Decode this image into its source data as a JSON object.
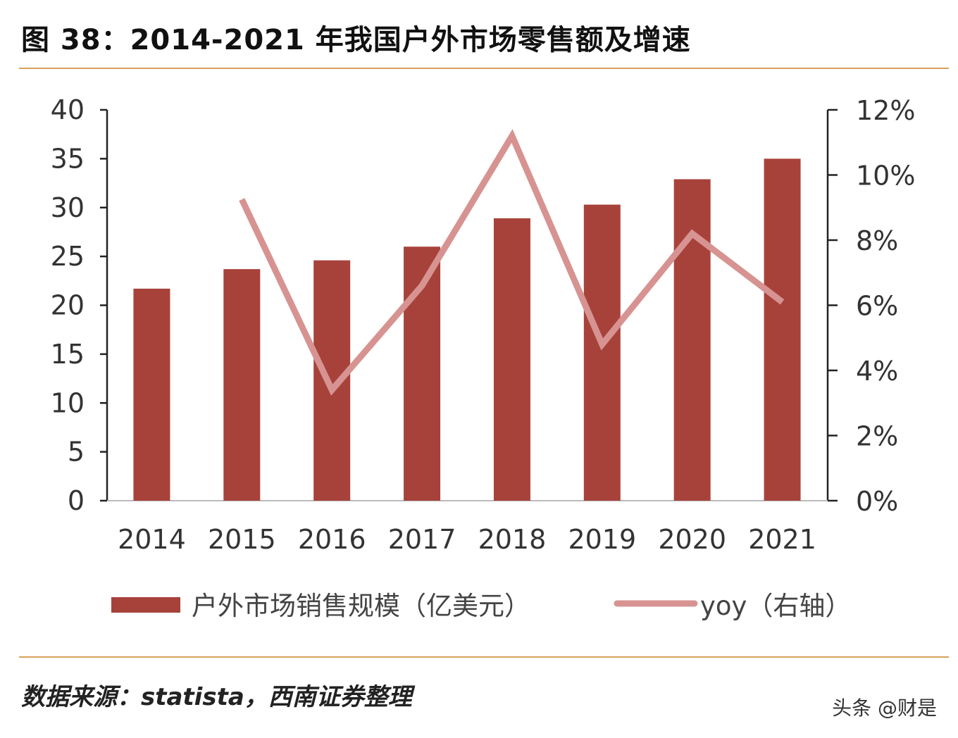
{
  "title": "图 38：2014-2021 年我国户外市场零售额及增速",
  "source": "数据来源：statista，西南证券整理",
  "watermark": "头条 @财是",
  "chart_data": {
    "type": "bar+line",
    "categories": [
      "2014",
      "2015",
      "2016",
      "2017",
      "2018",
      "2019",
      "2020",
      "2021"
    ],
    "series": [
      {
        "name": "户外市场销售规模（亿美元）",
        "type": "bar",
        "axis": "left",
        "color": "#A7423B",
        "values": [
          21.7,
          23.7,
          24.6,
          26.0,
          28.9,
          30.3,
          32.9,
          35.0
        ]
      },
      {
        "name": "yoy（右轴）",
        "type": "line",
        "axis": "right",
        "color": "#D79391",
        "values": [
          null,
          9.25,
          3.4,
          6.6,
          11.2,
          4.8,
          8.2,
          6.1
        ]
      }
    ],
    "left_axis": {
      "ylim": [
        0,
        40
      ],
      "ticks": [
        "0",
        "5",
        "10",
        "15",
        "20",
        "25",
        "30",
        "35",
        "40"
      ]
    },
    "right_axis": {
      "ylim": [
        0,
        12
      ],
      "ticks": [
        "0%",
        "2%",
        "4%",
        "6%",
        "8%",
        "10%",
        "12%"
      ]
    },
    "grid": false,
    "legend": "bottom"
  }
}
